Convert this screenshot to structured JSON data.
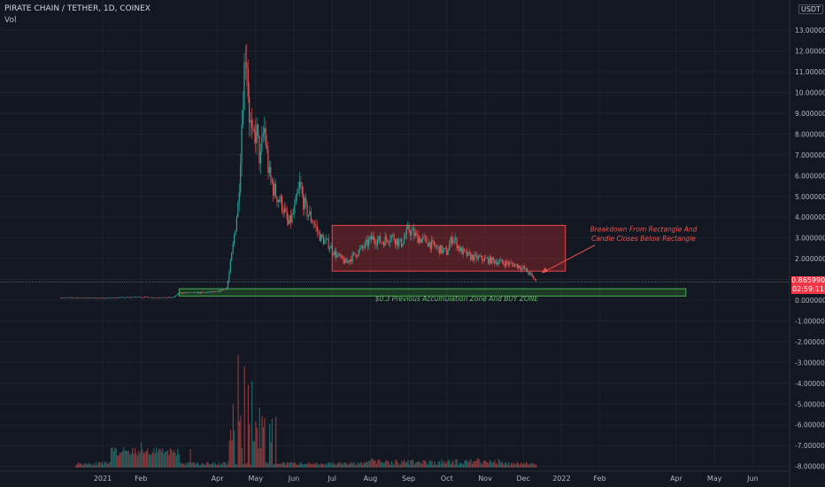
{
  "header": {
    "symbol_line": "PIRATE CHAIN / TETHER, 1D, COINEX",
    "volume_label": "Vol",
    "currency": "USDT"
  },
  "price_label": {
    "value": "0.865990",
    "countdown": "02:59:11"
  },
  "colors": {
    "background": "#131722",
    "grid": "#1e222d",
    "up": "#26a69a",
    "down": "#ef5350",
    "rect_fill": "#9c2b2b",
    "rect_stroke": "#e84a4a",
    "zone_fill": "#2e7d32",
    "zone_stroke": "#4caf50",
    "annotation_red": "#ef5350",
    "annotation_green": "#66bb6a",
    "axis_text": "#b2b5be",
    "price_badge": "#f23645"
  },
  "chart_data": {
    "type": "candlestick",
    "title": "PIRATE CHAIN / TETHER, 1D, COINEX",
    "y_axis": {
      "position": "right",
      "range": [
        -8,
        14
      ],
      "ticks": [
        13,
        12,
        11,
        10,
        9,
        8,
        7,
        6,
        5,
        4,
        3,
        2,
        1,
        0,
        -1,
        -2,
        -3,
        -4,
        -5,
        -6,
        -7,
        -8
      ],
      "tick_labels": [
        "13.000000",
        "12.000000",
        "11.000000",
        "10.000000",
        "9.000000",
        "8.000000",
        "7.000000",
        "6.000000",
        "5.000000",
        "4.000000",
        "3.000000",
        "2.000000",
        "1.000000",
        "0.000000",
        "-1.000000",
        "-2.000000",
        "-3.000000",
        "-4.000000",
        "-5.000000",
        "-6.000000",
        "-7.000000",
        "-8.000000"
      ]
    },
    "x_axis": {
      "labels": [
        "2021",
        "Feb",
        "Apr",
        "May",
        "Jun",
        "Jul",
        "Aug",
        "Sep",
        "Oct",
        "Nov",
        "Dec",
        "2022",
        "Feb",
        "Apr",
        "May",
        "Jun"
      ],
      "label_months": [
        0,
        1,
        3,
        4,
        5,
        6,
        7,
        8,
        9,
        10,
        11,
        12,
        13,
        15,
        16,
        17
      ]
    },
    "price_path": [
      {
        "m": -1.1,
        "p": 0.12
      },
      {
        "m": 0.0,
        "p": 0.1
      },
      {
        "m": 0.6,
        "p": 0.13
      },
      {
        "m": 1.0,
        "p": 0.15
      },
      {
        "m": 1.5,
        "p": 0.12
      },
      {
        "m": 1.85,
        "p": 0.13
      },
      {
        "m": 2.0,
        "p": 0.35
      },
      {
        "m": 2.5,
        "p": 0.36
      },
      {
        "m": 3.0,
        "p": 0.4
      },
      {
        "m": 3.25,
        "p": 0.6
      },
      {
        "m": 3.4,
        "p": 2.5
      },
      {
        "m": 3.55,
        "p": 4.8
      },
      {
        "m": 3.68,
        "p": 10.5
      },
      {
        "m": 3.75,
        "p": 12.6
      },
      {
        "m": 3.82,
        "p": 9.2
      },
      {
        "m": 3.92,
        "p": 7.5
      },
      {
        "m": 4.02,
        "p": 8.2
      },
      {
        "m": 4.12,
        "p": 6.6
      },
      {
        "m": 4.22,
        "p": 8.4
      },
      {
        "m": 4.35,
        "p": 6.0
      },
      {
        "m": 4.5,
        "p": 5.2
      },
      {
        "m": 4.7,
        "p": 4.6
      },
      {
        "m": 4.85,
        "p": 3.6
      },
      {
        "m": 5.0,
        "p": 4.2
      },
      {
        "m": 5.15,
        "p": 5.5
      },
      {
        "m": 5.3,
        "p": 4.4
      },
      {
        "m": 5.5,
        "p": 3.8
      },
      {
        "m": 5.7,
        "p": 3.0
      },
      {
        "m": 5.9,
        "p": 2.7
      },
      {
        "m": 6.1,
        "p": 2.2
      },
      {
        "m": 6.35,
        "p": 1.8
      },
      {
        "m": 6.6,
        "p": 2.2
      },
      {
        "m": 6.85,
        "p": 2.6
      },
      {
        "m": 7.05,
        "p": 3.0
      },
      {
        "m": 7.3,
        "p": 2.8
      },
      {
        "m": 7.55,
        "p": 3.1
      },
      {
        "m": 7.8,
        "p": 2.7
      },
      {
        "m": 8.0,
        "p": 3.4
      },
      {
        "m": 8.25,
        "p": 3.0
      },
      {
        "m": 8.5,
        "p": 2.8
      },
      {
        "m": 8.75,
        "p": 2.5
      },
      {
        "m": 9.0,
        "p": 2.3
      },
      {
        "m": 9.15,
        "p": 3.1
      },
      {
        "m": 9.35,
        "p": 2.4
      },
      {
        "m": 9.6,
        "p": 2.1
      },
      {
        "m": 9.9,
        "p": 2.0
      },
      {
        "m": 10.2,
        "p": 1.9
      },
      {
        "m": 10.5,
        "p": 1.8
      },
      {
        "m": 10.8,
        "p": 1.7
      },
      {
        "m": 11.0,
        "p": 1.55
      },
      {
        "m": 11.2,
        "p": 1.2
      },
      {
        "m": 11.35,
        "p": 0.87
      }
    ],
    "volume_peaks": [
      {
        "m": 3.4,
        "v": 0.55
      },
      {
        "m": 3.55,
        "v": 0.98
      },
      {
        "m": 3.62,
        "v": 0.45
      },
      {
        "m": 3.7,
        "v": 0.88
      },
      {
        "m": 3.8,
        "v": 0.72
      },
      {
        "m": 3.9,
        "v": 0.75
      },
      {
        "m": 4.0,
        "v": 0.4
      },
      {
        "m": 4.1,
        "v": 0.52
      },
      {
        "m": 4.2,
        "v": 0.35
      },
      {
        "m": 4.4,
        "v": 0.22
      },
      {
        "m": 2.3,
        "v": 0.16
      },
      {
        "m": 1.0,
        "v": 0.22
      }
    ],
    "rectangle": {
      "x0_month": 6.0,
      "x1_month": 12.1,
      "y_top": 3.6,
      "y_bottom": 1.4
    },
    "accumulation_zone": {
      "x0_month": 2.0,
      "x1_month": 15.25,
      "y_top": 0.55,
      "y_bottom": 0.2
    },
    "current_price_line": 0.86599,
    "annotations": [
      {
        "text": "Breakdown From Rectangle And",
        "price": 3.3
      },
      {
        "text": "Candle Closes Below Rectangle",
        "price": 2.85
      },
      {
        "text": "$0.3 Previous Accumulation Zone And BUY ZONE",
        "price": -0.05
      }
    ]
  }
}
